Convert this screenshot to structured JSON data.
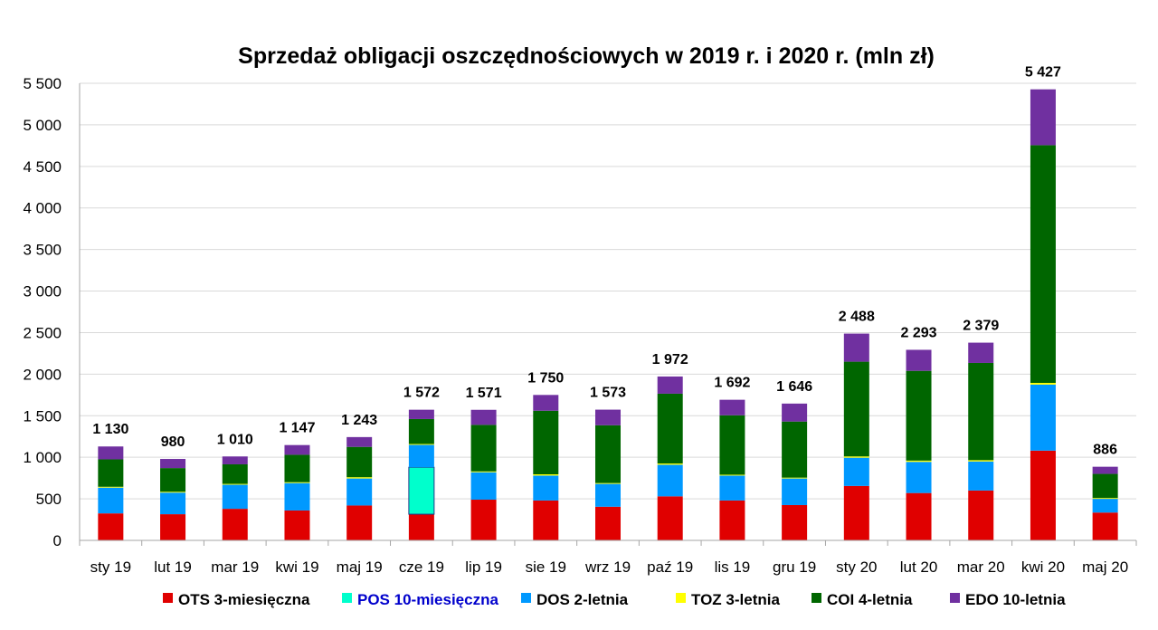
{
  "chart_data": {
    "type": "bar",
    "stacked": true,
    "title": "Sprzedaż obligacji oszczędnościowych w 2019 r. i 2020 r. (mln zł)",
    "xlabel": "",
    "ylabel": "",
    "ylim": [
      0,
      5500
    ],
    "yticks": [
      0,
      500,
      1000,
      1500,
      2000,
      2500,
      3000,
      3500,
      4000,
      4500,
      5000,
      5500
    ],
    "ytick_labels": [
      "0",
      "500",
      "1 000",
      "1 500",
      "2 000",
      "2 500",
      "3 000",
      "3 500",
      "4 000",
      "4 500",
      "5 000",
      "5 500"
    ],
    "grid": true,
    "legend_position": "bottom",
    "categories": [
      "sty 19",
      "lut 19",
      "mar 19",
      "kwi 19",
      "maj 19",
      "cze 19",
      "lip 19",
      "sie 19",
      "wrz 19",
      "paź 19",
      "lis 19",
      "gru 19",
      "sty 20",
      "lut 20",
      "mar 20",
      "kwi 20",
      "maj 20"
    ],
    "totals": [
      1130,
      980,
      1010,
      1147,
      1243,
      1572,
      1571,
      1750,
      1573,
      1972,
      1692,
      1646,
      2488,
      2293,
      2379,
      5427,
      886
    ],
    "total_labels": [
      "1 130",
      "980",
      "1 010",
      "1 147",
      "1 243",
      "1 572",
      "1 571",
      "1 750",
      "1 573",
      "1 972",
      "1 692",
      "1 646",
      "2 488",
      "2 293",
      "2 379",
      "5 427",
      "886"
    ],
    "series": [
      {
        "name": "OTS 3-miesięczna",
        "color": "#e00000",
        "values": [
          325,
          315,
          380,
          360,
          420,
          315,
          490,
          480,
          405,
          530,
          480,
          425,
          655,
          570,
          600,
          1080,
          335
        ]
      },
      {
        "name": "POS 10-miesięczna",
        "color": "#00ffcc",
        "label_color": "#0000cc",
        "values": [
          0,
          0,
          0,
          0,
          0,
          565,
          0,
          0,
          0,
          0,
          0,
          0,
          0,
          0,
          0,
          0,
          0
        ]
      },
      {
        "name": "DOS 2-letnia",
        "color": "#0099ff",
        "values": [
          310,
          260,
          290,
          330,
          325,
          270,
          330,
          300,
          275,
          380,
          300,
          320,
          340,
          375,
          350,
          795,
          165
        ]
      },
      {
        "name": "TOZ 3-letnia",
        "color": "#ffff00",
        "values": [
          10,
          10,
          10,
          10,
          15,
          10,
          10,
          15,
          10,
          15,
          10,
          10,
          15,
          15,
          15,
          20,
          10
        ]
      },
      {
        "name": "COI 4-letnia",
        "color": "#006600",
        "values": [
          330,
          285,
          235,
          330,
          365,
          300,
          560,
          765,
          695,
          840,
          715,
          675,
          1140,
          1080,
          1170,
          2860,
          290
        ]
      },
      {
        "name": "EDO 10-letnia",
        "color": "#7030a0",
        "values": [
          155,
          110,
          95,
          117,
          118,
          112,
          181,
          190,
          188,
          207,
          187,
          216,
          338,
          253,
          244,
          672,
          86
        ]
      }
    ]
  }
}
